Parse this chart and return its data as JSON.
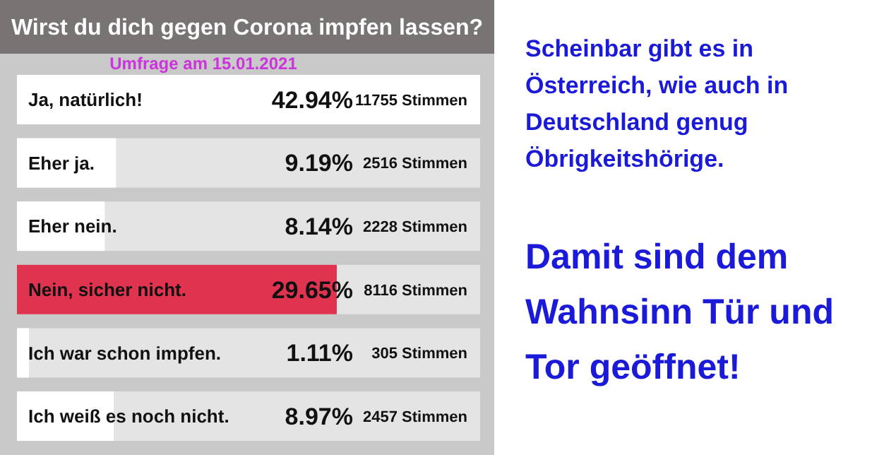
{
  "chart_data": {
    "type": "bar",
    "orientation": "horizontal",
    "title": "Wirst du dich gegen Corona impfen lassen?",
    "subtitle": "Umfrage am 15.01.2021",
    "categories": [
      "Ja, natürlich!",
      "Eher ja.",
      "Eher nein.",
      "Nein, sicher nicht.",
      "Ich war schon impfen.",
      "Ich weiß es noch nicht."
    ],
    "values": [
      42.94,
      9.19,
      8.14,
      29.65,
      1.11,
      8.97
    ],
    "colors": [
      "#ffffff",
      "#ffffff",
      "#ffffff",
      "#e0334f",
      "#ffffff",
      "#ffffff"
    ],
    "value_labels": [
      "42.94%",
      "9.19%",
      "8.14%",
      "29.65%",
      "1.11%",
      "8.97%"
    ],
    "relative": false,
    "annotations": [
      "11755 Stimmen",
      "2516 Stimmen",
      "2228 Stimmen",
      "8116 Stimmen",
      "305 Stimmen",
      "2457 Stimmen",
      "Scheinbar gibt es in\nÖsterreich, wie auch in\nDeutschland genug\nÖbrigkeitshörige.",
      "Damit sind dem\nWahnsinn Tür und\nTor geöffnet!"
    ]
  }
}
